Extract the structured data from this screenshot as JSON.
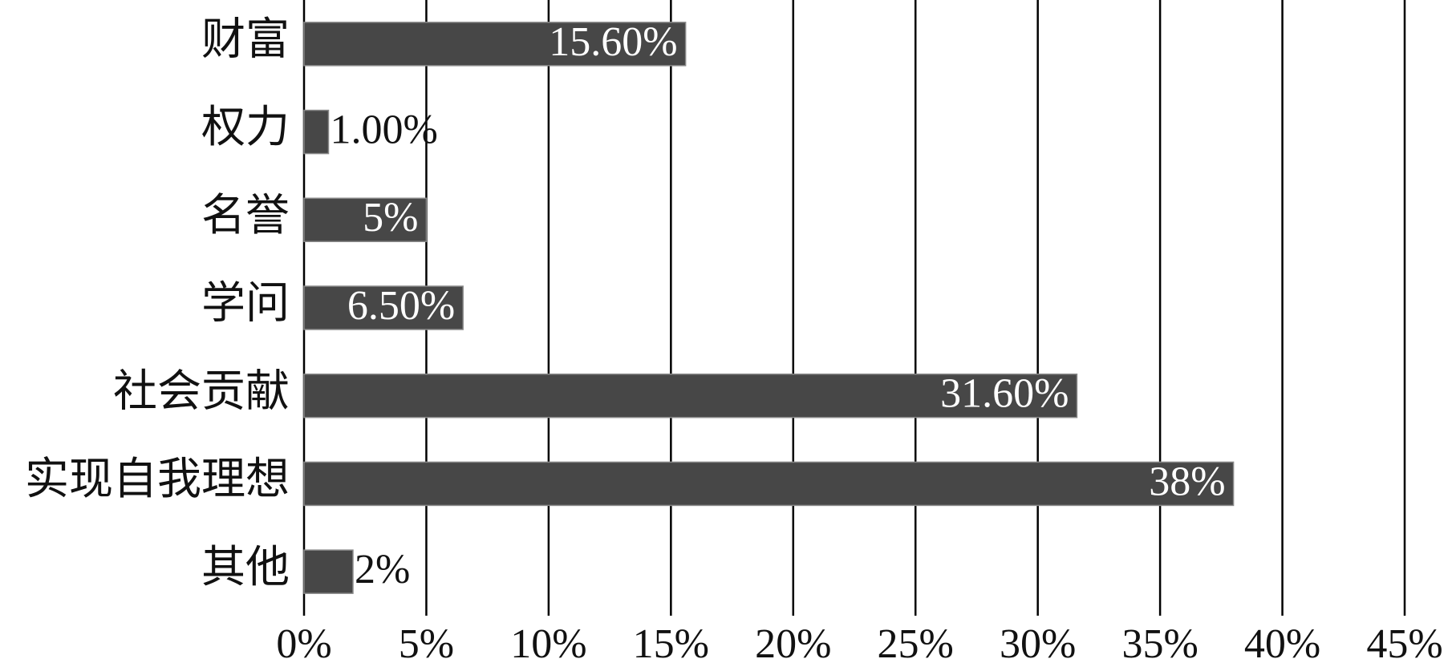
{
  "chart_data": {
    "type": "bar",
    "orientation": "horizontal",
    "categories": [
      "财富",
      "权力",
      "名誉",
      "学问",
      "社会贡献",
      "实现自我理想",
      "其他"
    ],
    "values": [
      15.6,
      1,
      5,
      6.5,
      31.6,
      38,
      2
    ],
    "value_labels": [
      "15.60%",
      "1.00%",
      "5%",
      "6.50%",
      "31.60%",
      "38%",
      "2%"
    ],
    "color": "#474747",
    "xlim": [
      0,
      45
    ],
    "xticks": [
      {
        "value": 0,
        "label": "0%"
      },
      {
        "value": 5,
        "label": "5%"
      },
      {
        "value": 10,
        "label": "10%"
      },
      {
        "value": 15,
        "label": "15%"
      },
      {
        "value": 20,
        "label": "20%"
      },
      {
        "value": 25,
        "label": "25%"
      },
      {
        "value": 30,
        "label": "30%"
      },
      {
        "value": 35,
        "label": "35%"
      },
      {
        "value": 40,
        "label": "40%"
      },
      {
        "value": 45,
        "label": "45%"
      }
    ],
    "grid": true
  }
}
